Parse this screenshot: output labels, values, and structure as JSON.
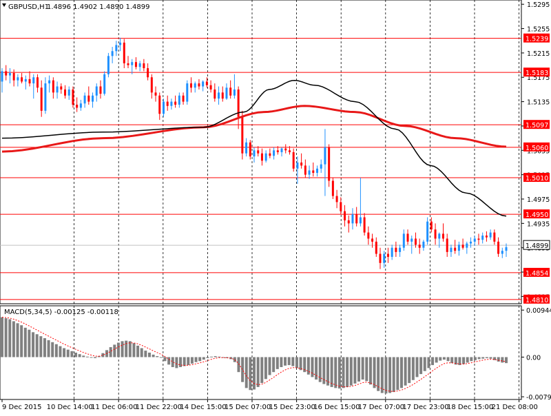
{
  "header": {
    "symbol_label": "GBPUSD,H1",
    "ohlc": "1.4896 1.4902 1.4890 1.4899"
  },
  "macd_label": "MACD(5,34,5) -0.00125 -0.00118",
  "chart_data": [
    {
      "type": "candlestick",
      "title": "GBPUSD,H1",
      "ylim": [
        1.4803,
        1.5302
      ],
      "y_ticks": [
        "1.5295",
        "1.5255",
        "1.5215",
        "1.5175",
        "1.5135",
        "1.5095",
        "1.5055",
        "1.5015",
        "1.4975",
        "1.4935",
        "1.4895",
        "1.4855",
        "1.4815"
      ],
      "price_levels": [
        "1.5239",
        "1.5183",
        "1.5097",
        "1.5060",
        "1.5010",
        "1.4950",
        "1.4854",
        "1.4810"
      ],
      "current_price": "1.4899",
      "x_tick_labels": [
        "9 Dec 2015",
        "10 Dec 14:00",
        "11 Dec 06:00",
        "11 Dec 22:00",
        "14 Dec 15:00",
        "15 Dec 07:00",
        "15 Dec 23:00",
        "16 Dec 15:00",
        "17 Dec 07:00",
        "17 Dec 23:00",
        "18 Dec 15:00",
        "21 Dec 08:00"
      ],
      "colors": {
        "bull": "#1e90ff",
        "bear": "#ff0000",
        "level": "#ff0000",
        "fast_ma": "#000000",
        "slow_ma": "#e81818"
      },
      "candles": [
        [
          1.5168,
          1.519,
          1.515,
          1.5185
        ],
        [
          1.5185,
          1.5195,
          1.517,
          1.5178
        ],
        [
          1.5178,
          1.519,
          1.5165,
          1.5182
        ],
        [
          1.5182,
          1.5188,
          1.516,
          1.517
        ],
        [
          1.517,
          1.518,
          1.516,
          1.5175
        ],
        [
          1.5175,
          1.5182,
          1.5165,
          1.5168
        ],
        [
          1.5168,
          1.5178,
          1.5155,
          1.5172
        ],
        [
          1.5172,
          1.5185,
          1.516,
          1.5165
        ],
        [
          1.5165,
          1.518,
          1.514,
          1.5175
        ],
        [
          1.5175,
          1.518,
          1.515,
          1.5158
        ],
        [
          1.5158,
          1.517,
          1.511,
          1.512
        ],
        [
          1.512,
          1.5175,
          1.5115,
          1.5165
        ],
        [
          1.5165,
          1.5178,
          1.515,
          1.517
        ],
        [
          1.517,
          1.5175,
          1.514,
          1.515
        ],
        [
          1.515,
          1.5168,
          1.514,
          1.516
        ],
        [
          1.516,
          1.5165,
          1.5148,
          1.5155
        ],
        [
          1.5155,
          1.5162,
          1.514,
          1.5145
        ],
        [
          1.5145,
          1.516,
          1.5138,
          1.5155
        ],
        [
          1.5155,
          1.516,
          1.5125,
          1.513
        ],
        [
          1.513,
          1.5142,
          1.5118,
          1.5125
        ],
        [
          1.5125,
          1.5138,
          1.512,
          1.5132
        ],
        [
          1.5132,
          1.515,
          1.5125,
          1.5145
        ],
        [
          1.5145,
          1.516,
          1.513,
          1.5135
        ],
        [
          1.5135,
          1.515,
          1.5125,
          1.5145
        ],
        [
          1.5145,
          1.5165,
          1.5135,
          1.516
        ],
        [
          1.516,
          1.517,
          1.514,
          1.5148
        ],
        [
          1.5148,
          1.5185,
          1.5145,
          1.518
        ],
        [
          1.518,
          1.5215,
          1.5175,
          1.521
        ],
        [
          1.521,
          1.5225,
          1.5198,
          1.5218
        ],
        [
          1.5218,
          1.5235,
          1.521,
          1.5228
        ],
        [
          1.5228,
          1.524,
          1.5218,
          1.5232
        ],
        [
          1.5232,
          1.5238,
          1.519,
          1.5198
        ],
        [
          1.5198,
          1.521,
          1.519,
          1.5195
        ],
        [
          1.5195,
          1.5205,
          1.518,
          1.52
        ],
        [
          1.52,
          1.5208,
          1.5188,
          1.5192
        ],
        [
          1.5192,
          1.5202,
          1.5185,
          1.5198
        ],
        [
          1.5198,
          1.5205,
          1.5185,
          1.519
        ],
        [
          1.519,
          1.5198,
          1.517,
          1.5175
        ],
        [
          1.5175,
          1.518,
          1.514,
          1.515
        ],
        [
          1.515,
          1.516,
          1.5135,
          1.5145
        ],
        [
          1.5145,
          1.515,
          1.5105,
          1.5115
        ],
        [
          1.5115,
          1.514,
          1.511,
          1.5135
        ],
        [
          1.5135,
          1.5145,
          1.512,
          1.5128
        ],
        [
          1.5128,
          1.514,
          1.5122,
          1.5135
        ],
        [
          1.5135,
          1.5145,
          1.5125,
          1.513
        ],
        [
          1.513,
          1.515,
          1.5125,
          1.5145
        ],
        [
          1.5145,
          1.515,
          1.513,
          1.5135
        ],
        [
          1.5135,
          1.517,
          1.513,
          1.5165
        ],
        [
          1.5165,
          1.5175,
          1.515,
          1.5158
        ],
        [
          1.5158,
          1.5168,
          1.515,
          1.5165
        ],
        [
          1.5165,
          1.5172,
          1.5155,
          1.516
        ],
        [
          1.516,
          1.517,
          1.5152,
          1.5168
        ],
        [
          1.5168,
          1.5175,
          1.5158,
          1.5162
        ],
        [
          1.5162,
          1.517,
          1.515,
          1.5155
        ],
        [
          1.5155,
          1.5165,
          1.5135,
          1.514
        ],
        [
          1.514,
          1.516,
          1.513,
          1.515
        ],
        [
          1.515,
          1.516,
          1.5135,
          1.514
        ],
        [
          1.514,
          1.5165,
          1.5138,
          1.5158
        ],
        [
          1.5158,
          1.517,
          1.514,
          1.5145
        ],
        [
          1.5145,
          1.518,
          1.514,
          1.5155
        ],
        [
          1.5155,
          1.516,
          1.509,
          1.511
        ],
        [
          1.511,
          1.512,
          1.504,
          1.505
        ],
        [
          1.505,
          1.5075,
          1.5045,
          1.5068
        ],
        [
          1.5068,
          1.5072,
          1.504,
          1.5045
        ],
        [
          1.5045,
          1.506,
          1.5035,
          1.5055
        ],
        [
          1.5055,
          1.5062,
          1.5045,
          1.505
        ],
        [
          1.505,
          1.5058,
          1.503,
          1.5038
        ],
        [
          1.5038,
          1.5055,
          1.5035,
          1.505
        ],
        [
          1.505,
          1.5058,
          1.5042,
          1.5046
        ],
        [
          1.5046,
          1.506,
          1.504,
          1.5055
        ],
        [
          1.5055,
          1.5062,
          1.5048,
          1.5052
        ],
        [
          1.5052,
          1.506,
          1.5045,
          1.5058
        ],
        [
          1.5058,
          1.5065,
          1.505,
          1.5055
        ],
        [
          1.5055,
          1.5062,
          1.5048,
          1.5052
        ],
        [
          1.5052,
          1.5058,
          1.502,
          1.5025
        ],
        [
          1.5025,
          1.5045,
          1.5,
          1.5035
        ],
        [
          1.5035,
          1.505,
          1.5025,
          1.503
        ],
        [
          1.503,
          1.504,
          1.501,
          1.5015
        ],
        [
          1.5015,
          1.503,
          1.5008,
          1.5022
        ],
        [
          1.5022,
          1.5035,
          1.5012,
          1.5018
        ],
        [
          1.5018,
          1.503,
          1.5012,
          1.5025
        ],
        [
          1.5025,
          1.504,
          1.5018,
          1.5032
        ],
        [
          1.5032,
          1.509,
          1.498,
          1.506
        ],
        [
          1.506,
          1.5065,
          1.4995,
          1.5005
        ],
        [
          1.5005,
          1.501,
          1.4975,
          1.498
        ],
        [
          1.498,
          1.499,
          1.496,
          1.497
        ],
        [
          1.497,
          1.4978,
          1.495,
          1.4955
        ],
        [
          1.4955,
          1.4965,
          1.493,
          1.494
        ],
        [
          1.494,
          1.4948,
          1.492,
          1.4935
        ],
        [
          1.4935,
          1.496,
          1.4925,
          1.495
        ],
        [
          1.495,
          1.4962,
          1.493,
          1.4935
        ],
        [
          1.4935,
          1.501,
          1.493,
          1.4945
        ],
        [
          1.4945,
          1.4952,
          1.4915,
          1.492
        ],
        [
          1.492,
          1.493,
          1.49,
          1.491
        ],
        [
          1.491,
          1.4918,
          1.4895,
          1.4905
        ],
        [
          1.4905,
          1.4912,
          1.488,
          1.4885
        ],
        [
          1.4885,
          1.4895,
          1.486,
          1.487
        ],
        [
          1.487,
          1.489,
          1.4862,
          1.4885
        ],
        [
          1.4885,
          1.4895,
          1.487,
          1.488
        ],
        [
          1.488,
          1.49,
          1.4875,
          1.4895
        ],
        [
          1.4895,
          1.4905,
          1.488,
          1.4888
        ],
        [
          1.4888,
          1.49,
          1.488,
          1.4895
        ],
        [
          1.4895,
          1.4925,
          1.489,
          1.4918
        ],
        [
          1.4918,
          1.4925,
          1.49,
          1.4905
        ],
        [
          1.4905,
          1.4915,
          1.4885,
          1.491
        ],
        [
          1.491,
          1.492,
          1.4895,
          1.49
        ],
        [
          1.49,
          1.491,
          1.4885,
          1.4895
        ],
        [
          1.4895,
          1.4908,
          1.489,
          1.4905
        ],
        [
          1.4905,
          1.4945,
          1.49,
          1.4938
        ],
        [
          1.4938,
          1.4945,
          1.492,
          1.4925
        ],
        [
          1.4925,
          1.4935,
          1.49,
          1.491
        ],
        [
          1.491,
          1.492,
          1.4895,
          1.4918
        ],
        [
          1.4918,
          1.4935,
          1.4905,
          1.491
        ],
        [
          1.491,
          1.4918,
          1.488,
          1.4888
        ],
        [
          1.4888,
          1.49,
          1.488,
          1.4895
        ],
        [
          1.4895,
          1.4908,
          1.4885,
          1.489
        ],
        [
          1.489,
          1.4905,
          1.4882,
          1.49
        ],
        [
          1.49,
          1.491,
          1.4892,
          1.4895
        ],
        [
          1.4895,
          1.4905,
          1.4885,
          1.4902
        ],
        [
          1.4902,
          1.4912,
          1.4895,
          1.4905
        ],
        [
          1.4905,
          1.4915,
          1.4898,
          1.491
        ],
        [
          1.491,
          1.4918,
          1.49,
          1.4908
        ],
        [
          1.4908,
          1.492,
          1.4902,
          1.4915
        ],
        [
          1.4915,
          1.4922,
          1.4905,
          1.4912
        ],
        [
          1.4912,
          1.4925,
          1.4908,
          1.492
        ],
        [
          1.492,
          1.4925,
          1.49,
          1.4905
        ],
        [
          1.4905,
          1.4912,
          1.488,
          1.4885
        ],
        [
          1.4885,
          1.4895,
          1.4878,
          1.489
        ],
        [
          1.489,
          1.4902,
          1.488,
          1.4896
        ]
      ],
      "fast_ma": [
        [
          0,
          1.5075
        ],
        [
          0.2,
          1.5085
        ],
        [
          0.4,
          1.5093
        ],
        [
          0.48,
          1.5118
        ],
        [
          0.53,
          1.5155
        ],
        [
          0.58,
          1.517
        ],
        [
          0.62,
          1.5162
        ],
        [
          0.7,
          1.5135
        ],
        [
          0.78,
          1.509
        ],
        [
          0.85,
          1.503
        ],
        [
          0.92,
          1.4985
        ],
        [
          1.0,
          1.4947
        ]
      ],
      "slow_ma": [
        [
          0,
          1.5053
        ],
        [
          0.2,
          1.5075
        ],
        [
          0.4,
          1.5093
        ],
        [
          0.52,
          1.5118
        ],
        [
          0.6,
          1.5128
        ],
        [
          0.7,
          1.5118
        ],
        [
          0.8,
          1.5095
        ],
        [
          0.9,
          1.5075
        ],
        [
          1.0,
          1.5061
        ]
      ]
    },
    {
      "type": "histogram",
      "title": "MACD(5,34,5) -0.00125 -0.00118",
      "ylim": [
        -0.0085,
        0.0103
      ],
      "y_ticks": [
        "0.00944",
        "0.00",
        "-0.00796"
      ],
      "histogram_values": [
        0.008,
        0.0078,
        0.0076,
        0.0072,
        0.0068,
        0.0064,
        0.0059,
        0.0055,
        0.005,
        0.0046,
        0.0042,
        0.0038,
        0.0034,
        0.003,
        0.0026,
        0.0022,
        0.0018,
        0.0015,
        0.0012,
        0.0009,
        0.0006,
        0.0003,
        0.0001,
        -0.0001,
        -0.0002,
        0.0002,
        0.0008,
        0.0014,
        0.002,
        0.0025,
        0.0029,
        0.0032,
        0.0033,
        0.0032,
        0.0028,
        0.0023,
        0.0018,
        0.0013,
        0.0009,
        0.0005,
        0.0002,
        -0.0001,
        -0.0008,
        -0.0015,
        -0.002,
        -0.0022,
        -0.002,
        -0.0018,
        -0.0016,
        -0.0013,
        -0.001,
        -0.0008,
        -0.0005,
        -0.0002,
        0.0001,
        0.0002,
        0.0001,
        -0.0001,
        -0.0002,
        -0.0004,
        -0.001,
        -0.003,
        -0.005,
        -0.0062,
        -0.0066,
        -0.0065,
        -0.006,
        -0.0052,
        -0.0044,
        -0.0036,
        -0.003,
        -0.0024,
        -0.002,
        -0.0017,
        -0.0016,
        -0.0018,
        -0.0022,
        -0.0026,
        -0.003,
        -0.0035,
        -0.004,
        -0.0045,
        -0.005,
        -0.0054,
        -0.0057,
        -0.006,
        -0.0062,
        -0.0063,
        -0.0062,
        -0.006,
        -0.0057,
        -0.0053,
        -0.0049,
        -0.0045,
        -0.0048,
        -0.0055,
        -0.0062,
        -0.0068,
        -0.0072,
        -0.0073,
        -0.0072,
        -0.007,
        -0.0066,
        -0.0062,
        -0.0057,
        -0.0052,
        -0.0046,
        -0.004,
        -0.0034,
        -0.0028,
        -0.0022,
        -0.0016,
        -0.0011,
        -0.0007,
        -0.0005,
        -0.0008,
        -0.0012,
        -0.0015,
        -0.0016,
        -0.0014,
        -0.0011,
        -0.0008,
        -0.0006,
        -0.0004,
        -0.0003,
        -0.0002,
        -0.0003,
        -0.0006,
        -0.0009,
        -0.0011,
        -0.0012
      ],
      "signal_color": "#ff0000",
      "bar_color": "#808080"
    }
  ]
}
